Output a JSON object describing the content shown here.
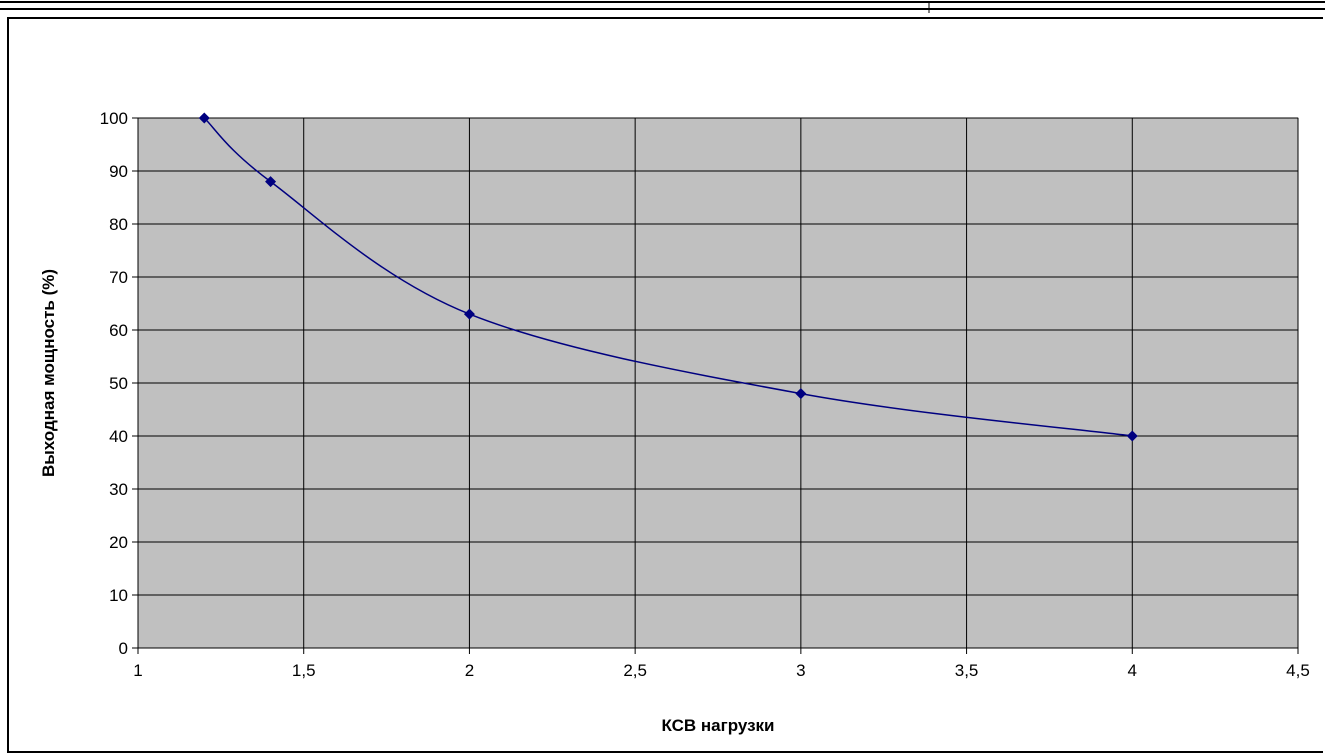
{
  "chart_data": {
    "type": "line",
    "title": "",
    "xlabel": "КСВ нагрузки",
    "ylabel": "Выходная мощность (%)",
    "xlim": [
      1,
      4.5
    ],
    "ylim": [
      0,
      100
    ],
    "x_ticks": [
      "1",
      "1,5",
      "2",
      "2,5",
      "3",
      "3,5",
      "4",
      "4,5"
    ],
    "y_ticks": [
      "0",
      "10",
      "20",
      "30",
      "40",
      "50",
      "60",
      "70",
      "80",
      "90",
      "100"
    ],
    "grid": true,
    "legend": "none",
    "plot_background": "#C0C0C0",
    "series": [
      {
        "x": [
          1.2,
          1.4,
          2,
          3,
          4
        ],
        "y": [
          100,
          88,
          63,
          48,
          40
        ],
        "color": "#000080",
        "marker": "diamond",
        "smooth": true
      }
    ]
  }
}
